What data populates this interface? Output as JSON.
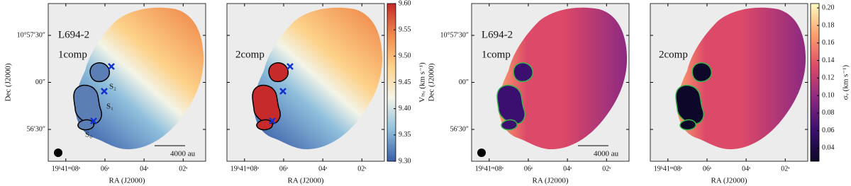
{
  "chart_data": [
    {
      "type": "map",
      "xlabel": "RA (J2000)",
      "ylabel": "Dec (J2000)",
      "xlim": [
        8.9,
        0.85
      ],
      "ylim": [
        -50.3,
        50.3
      ],
      "xticks": [
        {
          "value": 8,
          "label": "19ʰ41ᵐ08ˢ"
        },
        {
          "value": 6,
          "label": "06ˢ"
        },
        {
          "value": 4,
          "label": "04ˢ"
        },
        {
          "value": 2,
          "label": "02ˢ"
        }
      ],
      "yticks": [
        {
          "value": 30,
          "label": "10°57′30″"
        },
        {
          "value": 0,
          "label": "00″"
        },
        {
          "value": -30,
          "label": "56′30″"
        }
      ],
      "annotations": [
        "L694-2",
        "1comp",
        "S₂",
        "S₁",
        "S₀",
        "4000 au"
      ]
    },
    {
      "type": "map",
      "xlabel": "RA (J2000)",
      "xlim": [
        8.9,
        0.85
      ],
      "ylim": [
        -50.3,
        50.3
      ],
      "xticks": [
        {
          "value": 8,
          "label": "19ʰ41ᵐ08ˢ"
        },
        {
          "value": 6,
          "label": "06ˢ"
        },
        {
          "value": 4,
          "label": "04ˢ"
        },
        {
          "value": 2,
          "label": "02ˢ"
        }
      ],
      "annotations": [
        "2comp"
      ],
      "colorbar": {
        "label": "Vₗₛᵣ (km s⁻¹)",
        "lim": [
          9.3,
          9.6
        ],
        "ticks": [
          {
            "value": 9.3,
            "label": "9.30"
          },
          9.35,
          {
            "value": 9.4,
            "label": "9.40"
          },
          9.45,
          {
            "value": 9.5,
            "label": "9.50"
          },
          9.55,
          {
            "value": 9.6,
            "label": "9.60"
          }
        ],
        "colormap": [
          "#3a5ea8",
          "#8fbfdc",
          "#f3f4e8",
          "#fdd28a",
          "#f08a4b",
          "#c62a2a"
        ]
      }
    },
    {
      "type": "map",
      "xlabel": "RA (J2000)",
      "ylabel": "Dec (J2000)",
      "xlim": [
        8.9,
        0.85
      ],
      "ylim": [
        -50.3,
        50.3
      ],
      "xticks": [
        {
          "value": 8,
          "label": "19ʰ41ᵐ08ˢ"
        },
        {
          "value": 6,
          "label": "06ˢ"
        },
        {
          "value": 4,
          "label": "04ˢ"
        },
        {
          "value": 2,
          "label": "02ˢ"
        }
      ],
      "yticks": [
        {
          "value": 30,
          "label": "10°57′30″"
        },
        {
          "value": 0,
          "label": "00″"
        },
        {
          "value": -30,
          "label": "56′30″"
        }
      ],
      "annotations": [
        "L694-2",
        "1comp",
        "4000 au"
      ]
    },
    {
      "type": "map",
      "xlabel": "RA (J2000)",
      "xlim": [
        8.9,
        0.85
      ],
      "ylim": [
        -50.3,
        50.3
      ],
      "xticks": [
        {
          "value": 8,
          "label": "19ʰ41ᵐ08ˢ"
        },
        {
          "value": 6,
          "label": "06ˢ"
        },
        {
          "value": 4,
          "label": "04ˢ"
        },
        {
          "value": 2,
          "label": "02ˢ"
        }
      ],
      "annotations": [
        "2comp"
      ],
      "colorbar": {
        "label": "σᵥ (km s⁻¹)",
        "lim": [
          0.025,
          0.205
        ],
        "ticks": [
          0.04,
          0.06,
          0.08,
          {
            "value": 0.1,
            "label": "0.10"
          },
          0.12,
          0.14,
          0.16,
          0.18,
          {
            "value": 0.2,
            "label": "0.20"
          }
        ],
        "colormap": [
          "#0d0829",
          "#3b0f6f",
          "#8c2981",
          "#dd4968",
          "#fd9f6c",
          "#fcfdbf"
        ]
      }
    }
  ]
}
